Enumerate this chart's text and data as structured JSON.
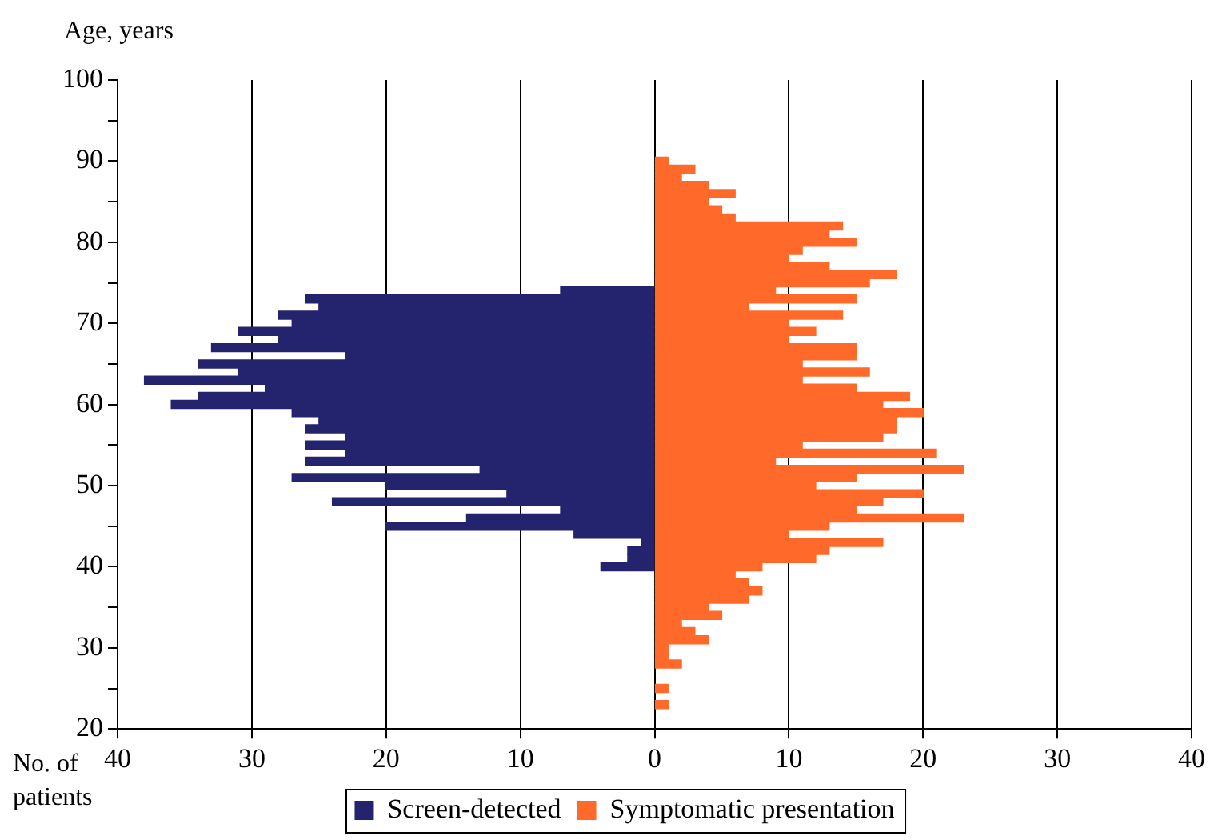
{
  "chart_data": {
    "type": "bar",
    "orientation": "horizontal",
    "xlabel": "No. of patients",
    "ylabel": "Age, years",
    "x": [
      23,
      24,
      25,
      26,
      27,
      28,
      29,
      30,
      31,
      32,
      33,
      34,
      35,
      36,
      37,
      38,
      39,
      40,
      41,
      42,
      43,
      44,
      45,
      46,
      47,
      48,
      49,
      50,
      51,
      52,
      53,
      54,
      55,
      56,
      57,
      58,
      59,
      60,
      61,
      62,
      63,
      64,
      65,
      66,
      67,
      68,
      69,
      70,
      71,
      72,
      73,
      74,
      75,
      76,
      77,
      78,
      79,
      80,
      81,
      82,
      83,
      84,
      85,
      86,
      87,
      88,
      89,
      90
    ],
    "series": [
      {
        "name": "Screen-detected",
        "color": "#24246e",
        "values": [
          null,
          null,
          null,
          null,
          null,
          null,
          null,
          null,
          null,
          null,
          null,
          null,
          null,
          null,
          null,
          null,
          null,
          -4,
          -2,
          -2,
          -1,
          -6,
          -20,
          -14,
          -7,
          -24,
          -11,
          -20,
          -27,
          -13,
          -26,
          -23,
          -26,
          -23,
          -26,
          -25,
          -27,
          -36,
          -34,
          -29,
          -38,
          -31,
          -34,
          -23,
          -33,
          -28,
          -31,
          -27,
          -28,
          -25,
          -26,
          -7,
          null,
          null,
          null,
          null,
          null,
          null,
          null,
          null,
          null,
          null,
          null,
          null,
          null,
          null,
          null,
          null
        ]
      },
      {
        "name": "Symptomatic presentation",
        "color": "#ff6a2a",
        "values": [
          1,
          null,
          1,
          null,
          null,
          2,
          1,
          1,
          4,
          3,
          2,
          5,
          4,
          7,
          8,
          7,
          6,
          8,
          12,
          13,
          17,
          10,
          13,
          23,
          15,
          17,
          20,
          12,
          15,
          23,
          9,
          21,
          11,
          17,
          18,
          18,
          20,
          17,
          19,
          15,
          11,
          16,
          11,
          15,
          15,
          10,
          12,
          10,
          14,
          7,
          15,
          9,
          16,
          18,
          13,
          10,
          11,
          15,
          13,
          14,
          6,
          5,
          4,
          6,
          4,
          2,
          3,
          1
        ]
      }
    ],
    "xlim": [
      -40,
      40
    ],
    "xticks": [
      {
        "value": -40,
        "label": "40"
      },
      {
        "value": -30,
        "label": "30"
      },
      {
        "value": -20,
        "label": "20"
      },
      {
        "value": -10,
        "label": "10"
      },
      0,
      10,
      20,
      30,
      40
    ],
    "ylim": [
      20,
      100
    ],
    "yticks": [
      20,
      {
        "value": 25,
        "label": null
      },
      30,
      {
        "value": 35,
        "label": null
      },
      40,
      {
        "value": 45,
        "label": null
      },
      50,
      {
        "value": 55,
        "label": null
      },
      60,
      {
        "value": 65,
        "label": null
      },
      70,
      {
        "value": 75,
        "label": null
      },
      80,
      {
        "value": 85,
        "label": null
      },
      90,
      {
        "value": 95,
        "label": null
      },
      100
    ],
    "grid": "x",
    "legend": "bottom",
    "stacked": true
  }
}
